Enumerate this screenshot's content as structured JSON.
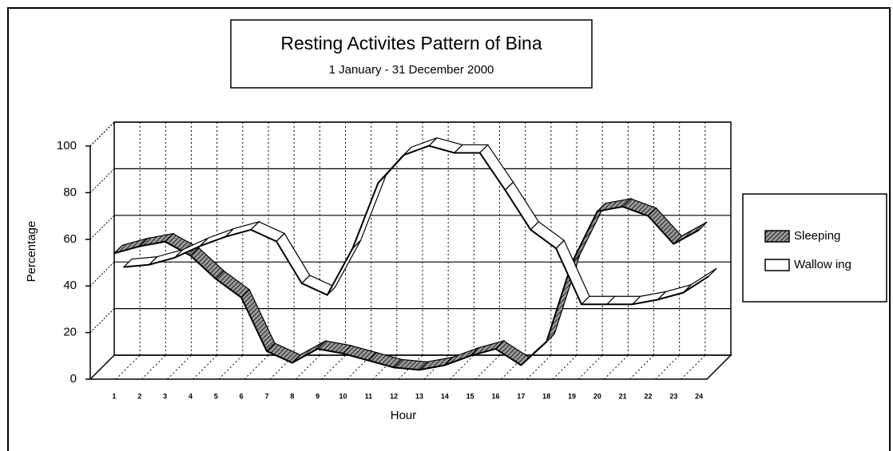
{
  "chart_data": {
    "type": "line3d",
    "title": "Resting Activites Pattern of Bina",
    "subtitle": "1 January - 31 December 2000",
    "x_label": "Hour",
    "y_label": "Percentage",
    "categories": [
      "1",
      "2",
      "3",
      "4",
      "5",
      "6",
      "7",
      "8",
      "9",
      "10",
      "11",
      "12",
      "13",
      "14",
      "15",
      "16",
      "17",
      "18",
      "19",
      "20",
      "21",
      "22",
      "23",
      "24"
    ],
    "series": [
      {
        "name": "Sleeping",
        "color": "#666666",
        "values": [
          54,
          57,
          59,
          53,
          43,
          35,
          12,
          7,
          13,
          11,
          8,
          5,
          4,
          6,
          10,
          13,
          6,
          16,
          50,
          72,
          74,
          70,
          58,
          64
        ]
      },
      {
        "name": "Wallow ing",
        "color": "#ffffff",
        "values": [
          44,
          45,
          48,
          53,
          57,
          60,
          55,
          37,
          32,
          52,
          80,
          92,
          96,
          93,
          93,
          77,
          60,
          52,
          28,
          28,
          28,
          30,
          33,
          40
        ]
      }
    ],
    "ylim": [
      0,
      100
    ],
    "yticks": [
      0,
      20,
      40,
      60,
      80,
      100
    ],
    "grid": true,
    "legend": "right"
  }
}
